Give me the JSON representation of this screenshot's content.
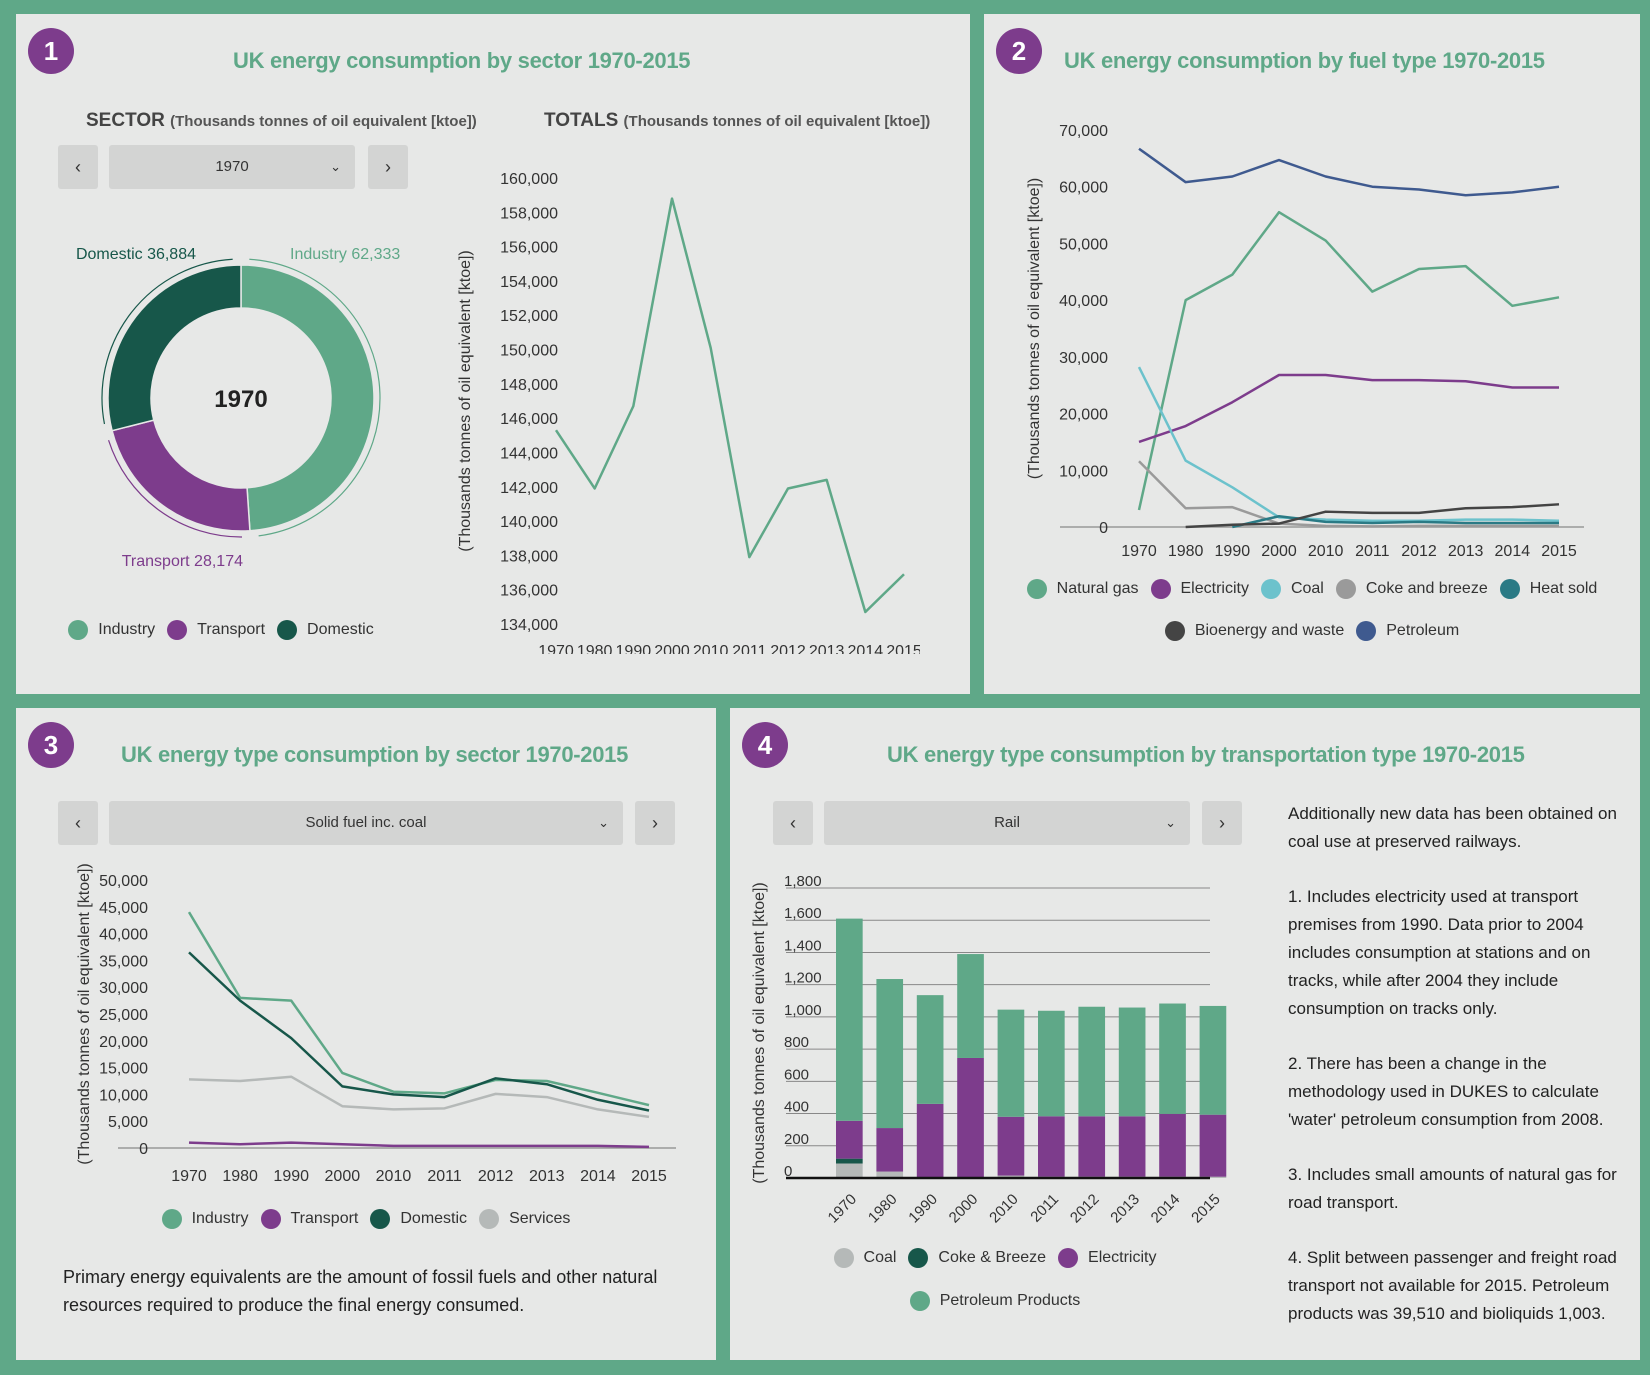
{
  "colors": {
    "accent": "#5fa888",
    "badge": "#7d3c8c",
    "industry": "#5fa888",
    "transport": "#7d3c8c",
    "domestic": "#17574a",
    "services": "#b5b9b8"
  },
  "panel1": {
    "badge": "1",
    "title": "UK energy consumption by sector 1970-2015",
    "sector_heading": "SECTOR",
    "sector_unit": "(Thousands tonnes of oil equivalent [ktoe])",
    "totals_heading": "TOTALS",
    "totals_unit": "(Thousands tonnes of oil equivalent [ktoe])",
    "prev_label": "‹",
    "next_label": "›",
    "selected_year": "1970",
    "chevron": "⌄",
    "legend": [
      "Industry",
      "Transport",
      "Domestic"
    ]
  },
  "panel2": {
    "badge": "2",
    "title": "UK energy consumption by fuel type 1970-2015",
    "legend_row1": [
      "Natural gas",
      "Electricity",
      "Coal",
      "Coke and breeze",
      "Heat sold"
    ],
    "legend_row2": [
      "Bioenergy and waste",
      "Petroleum"
    ]
  },
  "panel3": {
    "badge": "3",
    "title": "UK energy type consumption by sector 1970-2015",
    "prev_label": "‹",
    "next_label": "›",
    "selected_fuel": "Solid fuel inc. coal",
    "chevron": "⌄",
    "legend": [
      "Industry",
      "Transport",
      "Domestic",
      "Services"
    ],
    "footnote": "Primary energy equivalents are the amount of fossil fuels and other natural resources required to produce the final energy consumed."
  },
  "panel4": {
    "badge": "4",
    "title": "UK energy type consumption by transportation type 1970-2015",
    "prev_label": "‹",
    "next_label": "›",
    "selected_transport": "Rail",
    "chevron": "⌄",
    "legend_row1": [
      "Coal",
      "Coke & Breeze",
      "Electricity"
    ],
    "legend_row2": [
      "Petroleum Products"
    ],
    "notes": [
      "Additionally new data has been obtained on coal use at preserved railways.",
      "1. Includes electricity used at transport premises from 1990. Data prior to 2004 includes consumption at stations and on tracks, while after 2004 they include consumption on tracks only.",
      "2. There has been a change in the methodology used in DUKES to calculate 'water' petroleum consumption from 2008.",
      "3. Includes small amounts of natural gas for road transport.",
      "4. Split between passenger and freight road transport not available for 2015.  Petroleum products was 39,510 and bioliquids 1,003."
    ]
  },
  "chart_data": [
    {
      "id": "sector-donut",
      "type": "pie",
      "title": "SECTOR (Thousands tonnes of oil equivalent [ktoe])",
      "center_label": "1970",
      "slices": [
        {
          "name": "Industry",
          "value": 62333,
          "label": "Industry 62,333",
          "color": "#5fa888"
        },
        {
          "name": "Transport",
          "value": 28174,
          "label": "Transport 28,174",
          "color": "#7d3c8c"
        },
        {
          "name": "Domestic",
          "value": 36884,
          "label": "Domestic 36,884",
          "color": "#17574a"
        }
      ]
    },
    {
      "id": "totals-line",
      "type": "line",
      "title": "TOTALS (Thousands tonnes of oil equivalent [ktoe])",
      "ylabel": "(Thousands tonnes of oil equivalent [ktoe])",
      "xlabel": "",
      "x": [
        "1970",
        "1980",
        "1990",
        "2000",
        "2010",
        "2011",
        "2012",
        "2013",
        "2014",
        "2015"
      ],
      "ylim": [
        134000,
        160000
      ],
      "yticks": [
        134000,
        136000,
        138000,
        140000,
        142000,
        144000,
        146000,
        148000,
        150000,
        152000,
        154000,
        156000,
        158000,
        160000
      ],
      "series": [
        {
          "name": "Total",
          "color": "#5fa888",
          "values": [
            145300,
            141900,
            146700,
            158800,
            150100,
            137900,
            141900,
            142400,
            134700,
            136900
          ]
        }
      ]
    },
    {
      "id": "fuel-type-line",
      "type": "line",
      "title": "UK energy consumption by fuel type 1970-2015",
      "ylabel": "(Thousands tonnes of oil equivalent [ktoe])",
      "x": [
        "1970",
        "1980",
        "1990",
        "2000",
        "2010",
        "2011",
        "2012",
        "2013",
        "2014",
        "2015"
      ],
      "ylim": [
        0,
        70000
      ],
      "yticks": [
        0,
        10000,
        20000,
        30000,
        40000,
        50000,
        60000,
        70000
      ],
      "legend": "bottom",
      "series": [
        {
          "name": "Natural gas",
          "color": "#5fa888",
          "values": [
            3000,
            40000,
            44500,
            55500,
            50500,
            41500,
            45500,
            46000,
            39000,
            40500
          ]
        },
        {
          "name": "Electricity",
          "color": "#7d3c8c",
          "values": [
            15000,
            17800,
            22000,
            26800,
            26800,
            25900,
            25900,
            25700,
            24600,
            24600
          ]
        },
        {
          "name": "Coal",
          "color": "#6cc2cc",
          "values": [
            28200,
            11700,
            7000,
            1700,
            1300,
            1100,
            1100,
            1300,
            1300,
            1100
          ]
        },
        {
          "name": "Coke and breeze",
          "color": "#9a9a9a",
          "values": [
            11600,
            3300,
            3500,
            600,
            200,
            100,
            200,
            200,
            200,
            200
          ]
        },
        {
          "name": "Heat sold",
          "color": "#2a7a85",
          "values": [
            null,
            null,
            0,
            1900,
            900,
            700,
            900,
            700,
            700,
            700
          ]
        },
        {
          "name": "Bioenergy and waste",
          "color": "#444444",
          "values": [
            null,
            0,
            400,
            600,
            2700,
            2500,
            2500,
            3300,
            3500,
            4000
          ]
        },
        {
          "name": "Petroleum",
          "color": "#3f5a8f",
          "values": [
            66700,
            60800,
            61800,
            64700,
            61800,
            60000,
            59500,
            58500,
            59000,
            60000
          ]
        }
      ]
    },
    {
      "id": "sector-fuel-line",
      "type": "line",
      "title": "UK energy type consumption by sector 1970-2015",
      "ylabel": "(Thousands tonnes of oil equivalent [ktoe])",
      "x": [
        "1970",
        "1980",
        "1990",
        "2000",
        "2010",
        "2011",
        "2012",
        "2013",
        "2014",
        "2015"
      ],
      "ylim": [
        0,
        50000
      ],
      "yticks": [
        0,
        5000,
        10000,
        15000,
        20000,
        25000,
        30000,
        35000,
        40000,
        45000,
        50000
      ],
      "legend": "bottom",
      "series": [
        {
          "name": "Industry",
          "color": "#5fa888",
          "values": [
            44000,
            28000,
            27500,
            14000,
            10500,
            10200,
            12700,
            12500,
            10300,
            8000
          ]
        },
        {
          "name": "Transport",
          "color": "#7d3c8c",
          "values": [
            1000,
            700,
            1000,
            700,
            400,
            400,
            400,
            400,
            400,
            200
          ]
        },
        {
          "name": "Domestic",
          "color": "#17574a",
          "values": [
            36500,
            27500,
            20500,
            11500,
            10000,
            9500,
            13000,
            11900,
            9000,
            7000
          ]
        },
        {
          "name": "Services",
          "color": "#b5b9b8",
          "values": [
            12800,
            12500,
            13300,
            7800,
            7200,
            7400,
            10100,
            9500,
            7200,
            5800
          ]
        }
      ]
    },
    {
      "id": "transport-stacked-bar",
      "type": "bar",
      "stacked": true,
      "title": "UK energy type consumption by transportation type 1970-2015",
      "ylabel": "(Thousands tonnes of oil equivalent [ktoe])",
      "categories": [
        "1970",
        "1980",
        "1990",
        "2000",
        "2010",
        "2011",
        "2012",
        "2013",
        "2014",
        "2015"
      ],
      "ylim": [
        0,
        1800
      ],
      "yticks": [
        0,
        200,
        400,
        600,
        800,
        1000,
        1200,
        1400,
        1600,
        1800
      ],
      "grid": true,
      "legend": "bottom",
      "series": [
        {
          "name": "Coal",
          "color": "#b5b9b8",
          "values": [
            90,
            40,
            0,
            0,
            15,
            8,
            8,
            8,
            8,
            8
          ]
        },
        {
          "name": "Coke & Breeze",
          "color": "#17574a",
          "values": [
            30,
            0,
            0,
            0,
            0,
            0,
            0,
            0,
            0,
            0
          ]
        },
        {
          "name": "Electricity",
          "color": "#7d3c8c",
          "values": [
            235,
            270,
            460,
            745,
            365,
            375,
            375,
            375,
            390,
            385
          ]
        },
        {
          "name": "Petroleum Products",
          "color": "#5fa888",
          "values": [
            1255,
            925,
            675,
            645,
            665,
            655,
            680,
            675,
            685,
            675
          ]
        }
      ]
    }
  ]
}
